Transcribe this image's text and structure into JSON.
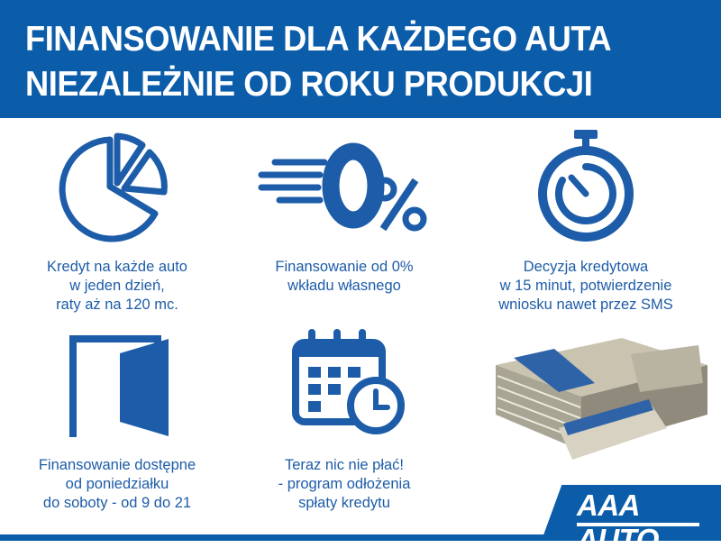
{
  "header": {
    "line1": "FINANSOWANIE DLA KAŻDEGO AUTA",
    "line2": "NIEZALEŻNIE OD ROKU PRODUKCJI"
  },
  "features": [
    {
      "icon": "pie-chart-icon",
      "lines": [
        "Kredyt na każde auto",
        "w jeden dzień,",
        "raty aż na 120 mc."
      ]
    },
    {
      "icon": "zero-percent-icon",
      "lines": [
        "Finansowanie od 0%",
        "wkładu własnego"
      ]
    },
    {
      "icon": "stopwatch-icon",
      "lines": [
        "Decyzja kredytowa",
        "w 15 minut, potwierdzenie",
        "wniosku nawet przez SMS"
      ]
    },
    {
      "icon": "open-door-icon",
      "lines": [
        "Finansowanie dostępne",
        "od poniedziałku",
        "do soboty - od 9 do 21"
      ]
    },
    {
      "icon": "calendar-clock-icon",
      "lines": [
        "Teraz nic nie płać!",
        "- program odłożenia",
        "spłaty kredytu"
      ]
    }
  ],
  "logo": {
    "text": "AAA AUTO"
  },
  "colors": {
    "brand_blue": "#0b5ca9",
    "text_blue": "#1d5ca8"
  }
}
